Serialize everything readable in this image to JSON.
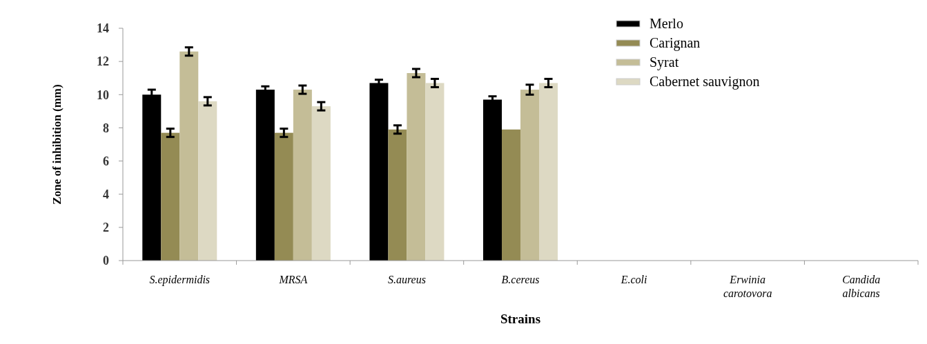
{
  "chart_data": {
    "type": "bar",
    "xlabel": "Strains",
    "ylabel": "Zone of inhibition (mm)",
    "categories": [
      "S.epidermidis",
      "MRSA",
      "S.aureus",
      "B.cereus",
      "E.coli",
      "Erwinia carotovora",
      "Candida albicans"
    ],
    "series": [
      {
        "name": "Merlo",
        "color": "#000000",
        "values": [
          10.0,
          10.3,
          10.7,
          9.7,
          null,
          null,
          null
        ],
        "errors": [
          0.3,
          0.2,
          0.2,
          0.2,
          null,
          null,
          null
        ]
      },
      {
        "name": "Carignan",
        "color": "#948b54",
        "values": [
          7.7,
          7.7,
          7.9,
          7.9,
          null,
          null,
          null
        ],
        "errors": [
          0.25,
          0.25,
          0.25,
          null,
          null,
          null,
          null
        ]
      },
      {
        "name": "Syrat",
        "color": "#c4bd97",
        "values": [
          12.6,
          10.3,
          11.3,
          10.3,
          null,
          null,
          null
        ],
        "errors": [
          0.25,
          0.25,
          0.25,
          0.3,
          null,
          null,
          null
        ]
      },
      {
        "name": "Cabernet sauvignon",
        "color": "#ddd9c3",
        "values": [
          9.6,
          9.3,
          10.7,
          10.7,
          null,
          null,
          null
        ],
        "errors": [
          0.25,
          0.25,
          0.25,
          0.25,
          null,
          null,
          null
        ]
      }
    ],
    "ylim": [
      0,
      14
    ],
    "yticks": [
      0,
      2,
      4,
      6,
      8,
      10,
      12,
      14
    ],
    "grid": false,
    "legend": "top right"
  }
}
